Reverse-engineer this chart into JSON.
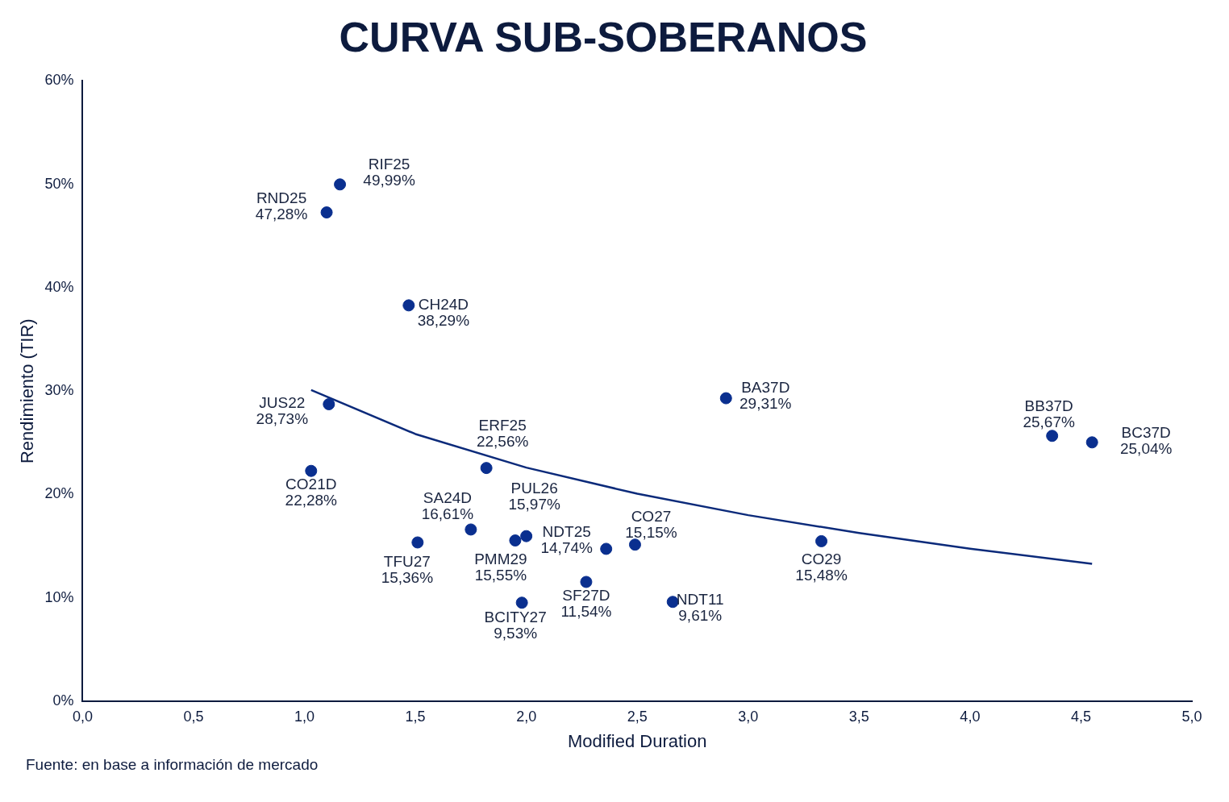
{
  "chart_data": {
    "type": "scatter",
    "title": "CURVA SUB-SOBERANOS",
    "xlabel": "Modified Duration",
    "ylabel": "Rendimiento (TIR)",
    "xlim": [
      0,
      5
    ],
    "ylim": [
      0,
      60
    ],
    "xticks": [
      {
        "value": 0,
        "label": "0,0"
      },
      {
        "value": 0.5,
        "label": "0,5"
      },
      {
        "value": 1,
        "label": "1,0"
      },
      {
        "value": 1.5,
        "label": "1,5"
      },
      {
        "value": 2,
        "label": "2,0"
      },
      {
        "value": 2.5,
        "label": "2,5"
      },
      {
        "value": 3,
        "label": "3,0"
      },
      {
        "value": 3.5,
        "label": "3,5"
      },
      {
        "value": 4,
        "label": "4,0"
      },
      {
        "value": 4.5,
        "label": "4,5"
      },
      {
        "value": 5,
        "label": "5,0"
      }
    ],
    "yticks": [
      {
        "value": 0,
        "label": "0%"
      },
      {
        "value": 10,
        "label": "10%"
      },
      {
        "value": 20,
        "label": "20%"
      },
      {
        "value": 30,
        "label": "30%"
      },
      {
        "value": 40,
        "label": "40%"
      },
      {
        "value": 50,
        "label": "50%"
      },
      {
        "value": 60,
        "label": "60%"
      }
    ],
    "grid": false,
    "legend": false,
    "marker": "circle",
    "series": [
      {
        "color": "#0a2f8f",
        "x": [
          1.16,
          1.1,
          1.47,
          1.11,
          1.03,
          1.82,
          1.75,
          2.0,
          1.51,
          1.95,
          2.36,
          2.49,
          2.27,
          1.98,
          2.66,
          2.9,
          3.33,
          4.37,
          4.55
        ],
        "values": [
          49.99,
          47.28,
          38.29,
          28.73,
          22.28,
          22.56,
          16.61,
          15.97,
          15.36,
          15.55,
          14.74,
          15.15,
          11.54,
          9.53,
          9.61,
          29.31,
          15.48,
          25.67,
          25.04
        ],
        "value_labels": [
          "49,99%",
          "47,28%",
          "38,29%",
          "28,73%",
          "22,28%",
          "22,56%",
          "16,61%",
          "15,97%",
          "15,36%",
          "15,55%",
          "14,74%",
          "15,15%",
          "11,54%",
          "9,53%",
          "9,61%",
          "29,31%",
          "15,48%",
          "25,67%",
          "25,04%"
        ]
      },
      {
        "type": "line",
        "color": "#0b2a7a",
        "marker": "none",
        "line_style": "solid",
        "x": [
          1.03,
          1.5,
          2,
          2.5,
          3,
          3.5,
          4,
          4.55
        ],
        "values": [
          30.1,
          25.85,
          22.6,
          20.07,
          18.0,
          16.27,
          14.76,
          13.3
        ]
      }
    ],
    "annotations": [
      {
        "text": "RIF25",
        "x": 1.16,
        "y": 49.99
      },
      {
        "text": "RND25",
        "x": 1.1,
        "y": 47.28
      },
      {
        "text": "CH24D",
        "x": 1.47,
        "y": 38.29
      },
      {
        "text": "JUS22",
        "x": 1.11,
        "y": 28.73
      },
      {
        "text": "CO21D",
        "x": 1.03,
        "y": 22.28
      },
      {
        "text": "ERF25",
        "x": 1.82,
        "y": 22.56
      },
      {
        "text": "SA24D",
        "x": 1.75,
        "y": 16.61
      },
      {
        "text": "PUL26",
        "x": 2.0,
        "y": 15.97
      },
      {
        "text": "TFU27",
        "x": 1.51,
        "y": 15.36
      },
      {
        "text": "PMM29",
        "x": 1.95,
        "y": 15.55
      },
      {
        "text": "NDT25",
        "x": 2.36,
        "y": 14.74
      },
      {
        "text": "CO27",
        "x": 2.49,
        "y": 15.15
      },
      {
        "text": "SF27D",
        "x": 2.27,
        "y": 11.54
      },
      {
        "text": "BCITY27",
        "x": 1.98,
        "y": 9.53
      },
      {
        "text": "NDT11",
        "x": 2.66,
        "y": 9.61
      },
      {
        "text": "BA37D",
        "x": 2.9,
        "y": 29.31
      },
      {
        "text": "CO29",
        "x": 3.33,
        "y": 15.48
      },
      {
        "text": "BB37D",
        "x": 4.37,
        "y": 25.67
      },
      {
        "text": "BC37D",
        "x": 4.55,
        "y": 25.04
      },
      "Fuente: en base a información de mercado"
    ]
  }
}
